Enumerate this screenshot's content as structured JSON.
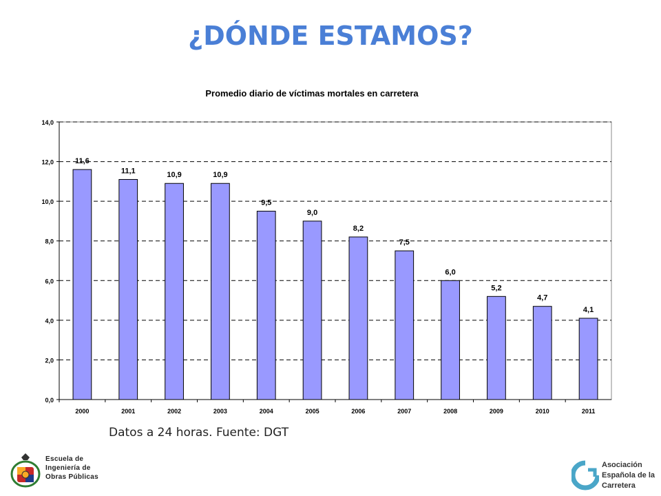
{
  "slide": {
    "title": "¿DÓNDE ESTAMOS?",
    "source_note": "Datos a 24 horas. Fuente: DGT"
  },
  "logos": {
    "left_lines": [
      "Escuela de",
      "Ingeniería de",
      "Obras Públicas"
    ],
    "right_lines": [
      "Asociación",
      "Española de la",
      "Carretera"
    ]
  },
  "colors": {
    "title": "#4a7fd6",
    "bar_fill": "#9999ff",
    "bar_stroke": "#000000",
    "logo_accent": "#4aa6c8"
  },
  "chart_data": {
    "type": "bar",
    "title": "Promedio diario de víctimas mortales en carretera",
    "categories": [
      "2000",
      "2001",
      "2002",
      "2003",
      "2004",
      "2005",
      "2006",
      "2007",
      "2008",
      "2009",
      "2010",
      "2011"
    ],
    "values": [
      11.6,
      11.1,
      10.9,
      10.9,
      9.5,
      9.0,
      8.2,
      7.5,
      6.0,
      5.2,
      4.7,
      4.1
    ],
    "data_labels": [
      "11,6",
      "11,1",
      "10,9",
      "10,9",
      "9,5",
      "9,0",
      "8,2",
      "7,5",
      "6,0",
      "5,2",
      "4,7",
      "4,1"
    ],
    "yticks": [
      "0,0",
      "2,0",
      "4,0",
      "6,0",
      "8,0",
      "10,0",
      "12,0",
      "14,0"
    ],
    "ylim": [
      0,
      14
    ],
    "xlabel": "",
    "ylabel": "",
    "grid": "horizontal dashed",
    "legend": "none"
  }
}
